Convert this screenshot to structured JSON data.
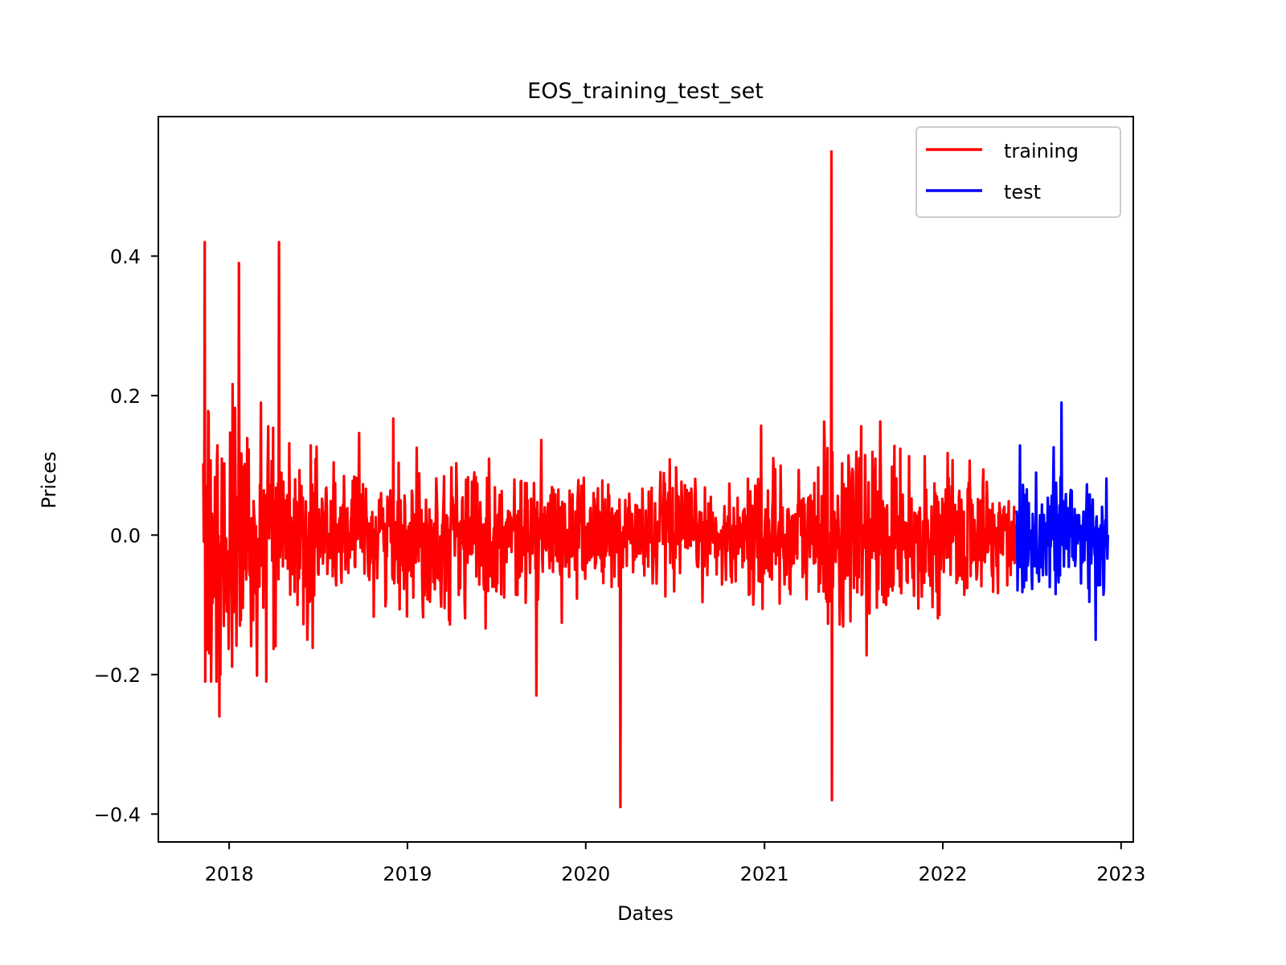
{
  "chart_data": {
    "type": "line",
    "title": "EOS_training_test_set",
    "xlabel": "Dates",
    "ylabel": "Prices",
    "x_ticks": [
      "2018",
      "2019",
      "2020",
      "2021",
      "2022",
      "2023"
    ],
    "y_ticks": [
      "−0.4",
      "−0.2",
      "0.0",
      "0.2",
      "0.4"
    ],
    "y_tick_values": [
      -0.4,
      -0.2,
      0.0,
      0.2,
      0.4
    ],
    "xlim": [
      "2017-08-09",
      "2023-01-26"
    ],
    "ylim": [
      -0.44,
      0.6
    ],
    "grid": false,
    "legend_position": "top-right",
    "series": [
      {
        "name": "training",
        "color": "#ff0000",
        "x_start": "2017-11-09",
        "x_end": "2022-06-01",
        "peaks": [
          {
            "date": "2017-11-12",
            "value": 0.42
          },
          {
            "date": "2017-12-12",
            "value": -0.26
          },
          {
            "date": "2018-01-21",
            "value": 0.39
          },
          {
            "date": "2018-04-13",
            "value": 0.42
          },
          {
            "date": "2019-09-22",
            "value": -0.23
          },
          {
            "date": "2020-03-12",
            "value": -0.39
          },
          {
            "date": "2021-05-18",
            "value": 0.55
          },
          {
            "date": "2021-05-19",
            "value": -0.38
          }
        ]
      },
      {
        "name": "test",
        "color": "#0000ff",
        "x_start": "2022-06-01",
        "x_end": "2022-12-05",
        "peaks": [
          {
            "date": "2022-09-01",
            "value": 0.19
          },
          {
            "date": "2022-11-10",
            "value": -0.15
          }
        ]
      }
    ]
  }
}
